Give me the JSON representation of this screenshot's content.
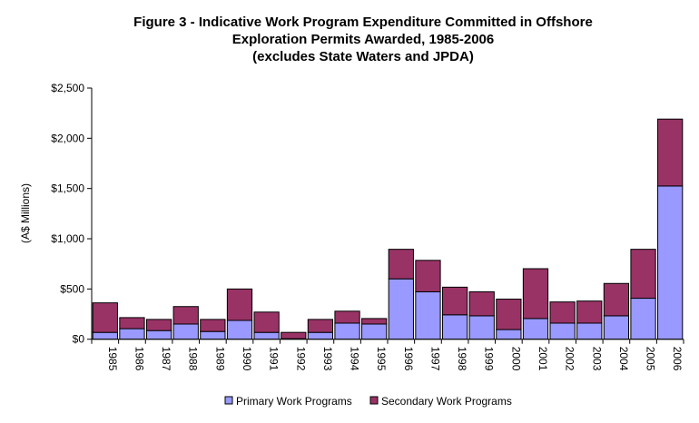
{
  "chart_data": {
    "type": "bar",
    "stacked": true,
    "title": [
      "Figure 3 - Indicative Work Program Expenditure Committed in Offshore",
      "Exploration Permits Awarded, 1985-2006",
      "(excludes State Waters and JPDA)"
    ],
    "xlabel": "",
    "ylabel": "(A$ Millions)",
    "ylim": [
      0,
      2500
    ],
    "yticks": [
      "$0",
      "$500",
      "$1,000",
      "$1,500",
      "$2,000",
      "$2,500"
    ],
    "ytick_values": [
      0,
      500,
      1000,
      1500,
      2000,
      2500
    ],
    "grid": false,
    "legend_position": "bottom",
    "categories": [
      "1985",
      "1986",
      "1987",
      "1988",
      "1989",
      "1990",
      "1991",
      "1992",
      "1993",
      "1994",
      "1995",
      "1996",
      "1997",
      "1998",
      "1999",
      "2000",
      "2001",
      "2002",
      "2003",
      "2004",
      "2005",
      "2006"
    ],
    "series": [
      {
        "name": "Primary Work Programs",
        "color": "#9999FF",
        "values": [
          68,
          105,
          86,
          151,
          77,
          187,
          68,
          5,
          68,
          160,
          151,
          601,
          472,
          243,
          233,
          96,
          206,
          160,
          160,
          233,
          408,
          1525
        ]
      },
      {
        "name": "Secondary Work Programs",
        "color": "#993366",
        "values": [
          294,
          110,
          111,
          174,
          120,
          313,
          202,
          63,
          129,
          119,
          55,
          294,
          313,
          275,
          239,
          303,
          496,
          211,
          220,
          322,
          487,
          666
        ]
      }
    ]
  }
}
